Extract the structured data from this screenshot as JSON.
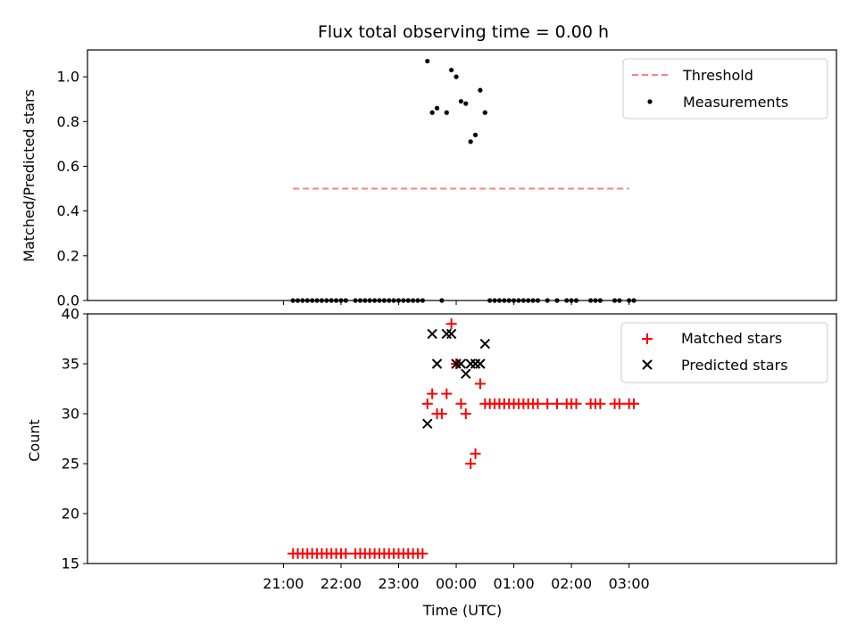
{
  "chart_data": [
    {
      "type": "scatter",
      "title": "Flux total observing time = 0.00 h",
      "xlabel": "",
      "ylabel": "Matched/Predicted stars",
      "ylim": [
        0,
        1.12
      ],
      "yticks": [
        "0.0",
        "0.2",
        "0.4",
        "0.6",
        "0.8",
        "1.0"
      ],
      "ytick_values": [
        0,
        0.2,
        0.4,
        0.6,
        0.8,
        1.0
      ],
      "legend": "top-right",
      "threshold": {
        "name": "Threshold",
        "value": 0.5,
        "x_start": "21:10",
        "x_end": "03:00",
        "color": "#ff7f7f"
      },
      "series": [
        {
          "name": "Measurements",
          "color": "#000000",
          "points": [
            [
              "21:10",
              0
            ],
            [
              "21:15",
              0
            ],
            [
              "21:20",
              0
            ],
            [
              "21:25",
              0
            ],
            [
              "21:30",
              0
            ],
            [
              "21:35",
              0
            ],
            [
              "21:40",
              0
            ],
            [
              "21:45",
              0
            ],
            [
              "21:50",
              0
            ],
            [
              "21:55",
              0
            ],
            [
              "22:00",
              0
            ],
            [
              "22:05",
              0
            ],
            [
              "22:15",
              0
            ],
            [
              "22:20",
              0
            ],
            [
              "22:25",
              0
            ],
            [
              "22:30",
              0
            ],
            [
              "22:35",
              0
            ],
            [
              "22:40",
              0
            ],
            [
              "22:45",
              0
            ],
            [
              "22:50",
              0
            ],
            [
              "22:55",
              0
            ],
            [
              "23:00",
              0
            ],
            [
              "23:05",
              0
            ],
            [
              "23:10",
              0
            ],
            [
              "23:15",
              0
            ],
            [
              "23:20",
              0
            ],
            [
              "23:25",
              0
            ],
            [
              "23:30",
              1.07
            ],
            [
              "23:35",
              0.84
            ],
            [
              "23:40",
              0.86
            ],
            [
              "23:45",
              0
            ],
            [
              "23:50",
              0.84
            ],
            [
              "23:55",
              1.03
            ],
            [
              "00:00",
              1.0
            ],
            [
              "00:05",
              0.89
            ],
            [
              "00:10",
              0.88
            ],
            [
              "00:15",
              0.71
            ],
            [
              "00:20",
              0.74
            ],
            [
              "00:25",
              0.94
            ],
            [
              "00:30",
              0.84
            ],
            [
              "00:35",
              0
            ],
            [
              "00:40",
              0
            ],
            [
              "00:45",
              0
            ],
            [
              "00:50",
              0
            ],
            [
              "00:55",
              0
            ],
            [
              "01:00",
              0
            ],
            [
              "01:05",
              0
            ],
            [
              "01:10",
              0
            ],
            [
              "01:15",
              0
            ],
            [
              "01:20",
              0
            ],
            [
              "01:25",
              0
            ],
            [
              "01:35",
              0
            ],
            [
              "01:45",
              0
            ],
            [
              "01:55",
              0
            ],
            [
              "02:00",
              0
            ],
            [
              "02:05",
              0
            ],
            [
              "02:20",
              0
            ],
            [
              "02:25",
              0
            ],
            [
              "02:30",
              0
            ],
            [
              "02:45",
              0
            ],
            [
              "02:50",
              0
            ],
            [
              "03:00",
              0
            ],
            [
              "03:05",
              0
            ]
          ]
        }
      ]
    },
    {
      "type": "scatter",
      "title": "",
      "xlabel": "Time (UTC)",
      "ylabel": "Count",
      "ylim": [
        15,
        40
      ],
      "yticks": [
        "15",
        "20",
        "25",
        "30",
        "35",
        "40"
      ],
      "ytick_values": [
        15,
        20,
        25,
        30,
        35,
        40
      ],
      "xticks": [
        "21:00",
        "22:00",
        "23:00",
        "00:00",
        "01:00",
        "02:00",
        "03:00"
      ],
      "legend": "top-right",
      "series": [
        {
          "name": "Matched stars",
          "color": "#ff0000",
          "marker": "plus",
          "points": [
            [
              "21:10",
              16
            ],
            [
              "21:15",
              16
            ],
            [
              "21:20",
              16
            ],
            [
              "21:25",
              16
            ],
            [
              "21:30",
              16
            ],
            [
              "21:35",
              16
            ],
            [
              "21:40",
              16
            ],
            [
              "21:45",
              16
            ],
            [
              "21:50",
              16
            ],
            [
              "21:55",
              16
            ],
            [
              "22:00",
              16
            ],
            [
              "22:05",
              16
            ],
            [
              "22:15",
              16
            ],
            [
              "22:20",
              16
            ],
            [
              "22:25",
              16
            ],
            [
              "22:30",
              16
            ],
            [
              "22:35",
              16
            ],
            [
              "22:40",
              16
            ],
            [
              "22:45",
              16
            ],
            [
              "22:50",
              16
            ],
            [
              "22:55",
              16
            ],
            [
              "23:00",
              16
            ],
            [
              "23:05",
              16
            ],
            [
              "23:10",
              16
            ],
            [
              "23:15",
              16
            ],
            [
              "23:20",
              16
            ],
            [
              "23:25",
              16
            ],
            [
              "23:30",
              31
            ],
            [
              "23:35",
              32
            ],
            [
              "23:40",
              30
            ],
            [
              "23:45",
              30
            ],
            [
              "23:50",
              32
            ],
            [
              "23:55",
              39
            ],
            [
              "00:00",
              35
            ],
            [
              "00:05",
              31
            ],
            [
              "00:10",
              30
            ],
            [
              "00:15",
              25
            ],
            [
              "00:20",
              26
            ],
            [
              "00:25",
              33
            ],
            [
              "00:30",
              31
            ],
            [
              "00:35",
              31
            ],
            [
              "00:40",
              31
            ],
            [
              "00:45",
              31
            ],
            [
              "00:50",
              31
            ],
            [
              "00:55",
              31
            ],
            [
              "01:00",
              31
            ],
            [
              "01:05",
              31
            ],
            [
              "01:10",
              31
            ],
            [
              "01:15",
              31
            ],
            [
              "01:20",
              31
            ],
            [
              "01:25",
              31
            ],
            [
              "01:35",
              31
            ],
            [
              "01:45",
              31
            ],
            [
              "01:55",
              31
            ],
            [
              "02:00",
              31
            ],
            [
              "02:05",
              31
            ],
            [
              "02:20",
              31
            ],
            [
              "02:25",
              31
            ],
            [
              "02:30",
              31
            ],
            [
              "02:45",
              31
            ],
            [
              "02:50",
              31
            ],
            [
              "03:00",
              31
            ],
            [
              "03:05",
              31
            ]
          ]
        },
        {
          "name": "Predicted stars",
          "color": "#000000",
          "marker": "x",
          "points": [
            [
              "23:30",
              29
            ],
            [
              "23:35",
              38
            ],
            [
              "23:40",
              35
            ],
            [
              "23:50",
              38
            ],
            [
              "23:55",
              38
            ],
            [
              "00:00",
              35
            ],
            [
              "00:05",
              35
            ],
            [
              "00:10",
              34
            ],
            [
              "00:15",
              35
            ],
            [
              "00:20",
              35
            ],
            [
              "00:25",
              35
            ],
            [
              "00:30",
              37
            ]
          ]
        }
      ]
    }
  ]
}
